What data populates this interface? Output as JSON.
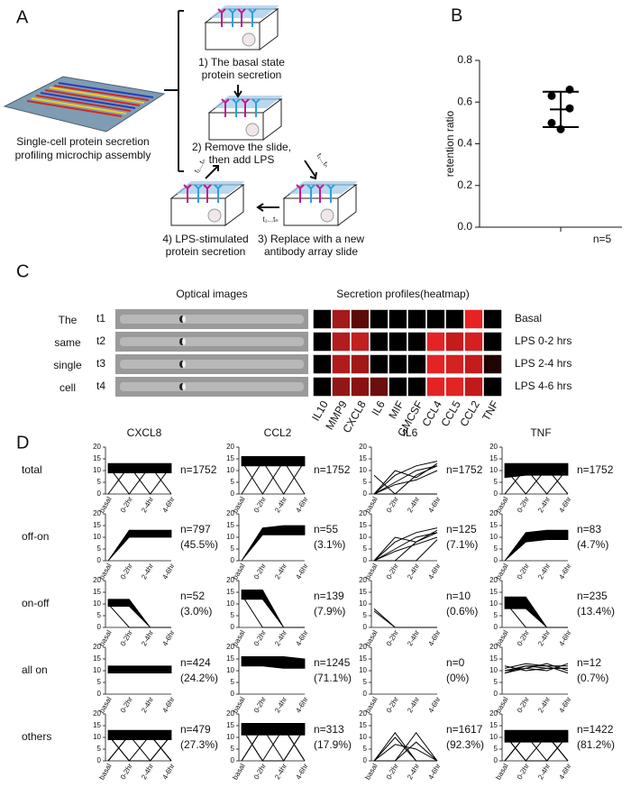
{
  "panel_a": {
    "label": "A",
    "microchip_caption": [
      "Single-cell protein secretion",
      "profiling microchip assembly"
    ],
    "steps": [
      [
        "1)  The basal state",
        "protein secretion"
      ],
      [
        "2) Remove the slide,",
        "then add LPS"
      ],
      [
        "3) Replace with a new",
        "antibody array slide"
      ],
      [
        "4) LPS-stimulated",
        "protein secretion"
      ]
    ],
    "time_labels": [
      "t₁...tₙ",
      "t₁...tₙ",
      "t₁...tₙ"
    ]
  },
  "chart_data": {
    "type": "scatter",
    "label": "B",
    "ylabel": "retention ratio",
    "ylim": [
      0,
      0.8
    ],
    "yticks": [
      {
        "value": 0,
        "label": "0.0"
      },
      0.2,
      0.4,
      0.6,
      0.8
    ],
    "values": [
      0.66,
      0.63,
      0.57,
      0.5,
      0.47
    ],
    "mean": 0.565,
    "sd": 0.085,
    "annotation": "n=5",
    "color": "#000000"
  },
  "panel_c": {
    "label": "C",
    "optical_header": "Optical images",
    "heatmap_header": "Secretion profiles(heatmap)",
    "side_label": [
      "The",
      "same",
      "single",
      "cell"
    ],
    "columns": [
      "IL10",
      "MMP9",
      "CXCL8",
      "IL6",
      "MIF",
      "GMCSF",
      "CCL4",
      "CCL5",
      "CCL2",
      "TNF"
    ],
    "rows": [
      {
        "label": "t1",
        "condition": "Basal",
        "colors": [
          "#000000",
          "#a51a1a",
          "#5c0a0a",
          "#000000",
          "#000000",
          "#000000",
          "#000000",
          "#000000",
          "#e82222",
          "#000000"
        ]
      },
      {
        "label": "t2",
        "condition": "LPS 0-2 hrs",
        "colors": [
          "#000000",
          "#b21c1c",
          "#c02020",
          "#000000",
          "#000000",
          "#000000",
          "#e42424",
          "#c41c1c",
          "#d42020",
          "#000000"
        ]
      },
      {
        "label": "t3",
        "condition": "LPS 2-4 hrs",
        "colors": [
          "#000000",
          "#b01c1c",
          "#a01818",
          "#000000",
          "#000000",
          "#000000",
          "#e42424",
          "#d42222",
          "#c21c1c",
          "#200404"
        ]
      },
      {
        "label": "t4",
        "condition": "LPS 4-6 hrs",
        "colors": [
          "#000000",
          "#921616",
          "#8a1212",
          "#6a0e0e",
          "#000000",
          "#000000",
          "#e42424",
          "#e22424",
          "#c21a1a",
          "#000000"
        ]
      }
    ]
  },
  "panel_d": {
    "type": "line",
    "label": "D",
    "ylim": [
      0,
      20
    ],
    "yticks": [
      0,
      5,
      10,
      15,
      20
    ],
    "categories": [
      "basal",
      "0-2hr",
      "2-4hr",
      "4-6hr"
    ],
    "rows": [
      "total",
      "off-on",
      "on-off",
      "all on",
      "others"
    ],
    "columns": [
      {
        "name": "CXCL8",
        "panels": [
          {
            "n": [
              "n=1752"
            ],
            "band": {
              "low": [
                9,
                9,
                9,
                9
              ],
              "high": [
                13,
                13,
                13,
                13
              ]
            },
            "traces": [
              [
                0,
                12,
                12,
                12
              ],
              [
                12,
                0,
                12,
                12
              ],
              [
                12,
                12,
                0,
                12
              ],
              [
                12,
                12,
                12,
                0
              ]
            ]
          },
          {
            "n": [
              "n=797",
              "(45.5%)"
            ],
            "band": {
              "low": [
                0,
                10,
                10,
                10
              ],
              "high": [
                0,
                13,
                13,
                13
              ]
            }
          },
          {
            "n": [
              "n=52",
              "(3.0%)"
            ],
            "band": {
              "low": [
                9,
                9,
                0,
                0
              ],
              "high": [
                12,
                12,
                0,
                0
              ]
            },
            "traces": [
              [
                10,
                0,
                0,
                0
              ]
            ]
          },
          {
            "n": [
              "n=424",
              "(24.2%)"
            ],
            "band": {
              "low": [
                9,
                9,
                9,
                9
              ],
              "high": [
                12,
                12,
                12,
                12
              ]
            }
          },
          {
            "n": [
              "n=479",
              "(27.3%)"
            ],
            "band": {
              "low": [
                9,
                9,
                9,
                9
              ],
              "high": [
                13,
                13,
                13,
                13
              ]
            },
            "traces": [
              [
                0,
                11,
                0,
                11
              ],
              [
                11,
                0,
                11,
                0
              ],
              [
                0,
                11,
                11,
                0
              ],
              [
                11,
                0,
                0,
                11
              ]
            ]
          }
        ]
      },
      {
        "name": "CCL2",
        "panels": [
          {
            "n": [
              "n=1752"
            ],
            "band": {
              "low": [
                12,
                12,
                12,
                12
              ],
              "high": [
                16,
                16,
                16,
                16
              ]
            },
            "traces": [
              [
                0,
                14,
                14,
                14
              ],
              [
                14,
                0,
                14,
                14
              ],
              [
                14,
                14,
                0,
                14
              ],
              [
                14,
                14,
                14,
                0
              ]
            ]
          },
          {
            "n": [
              "n=55",
              "(3.1%)"
            ],
            "band": {
              "low": [
                0,
                11,
                11,
                11
              ],
              "high": [
                0,
                14,
                15,
                15
              ]
            }
          },
          {
            "n": [
              "n=139",
              "(7.9%)"
            ],
            "band": {
              "low": [
                12,
                12,
                0,
                0
              ],
              "high": [
                16,
                16,
                0,
                0
              ]
            },
            "traces": [
              [
                14,
                0,
                0,
                0
              ]
            ]
          },
          {
            "n": [
              "n=1245",
              "(71.1%)"
            ],
            "band": {
              "low": [
                12,
                12,
                11,
                11
              ],
              "high": [
                16,
                16,
                16,
                15
              ]
            }
          },
          {
            "n": [
              "n=313",
              "(17.9%)"
            ],
            "band": {
              "low": [
                11,
                11,
                11,
                11
              ],
              "high": [
                16,
                16,
                16,
                16
              ]
            },
            "traces": [
              [
                0,
                14,
                0,
                14
              ],
              [
                14,
                0,
                14,
                0
              ],
              [
                14,
                0,
                0,
                14
              ],
              [
                0,
                14,
                14,
                0
              ]
            ]
          }
        ]
      },
      {
        "name": "IL6",
        "panels": [
          {
            "n": [
              "n=1752"
            ],
            "traces": [
              [
                8,
                0,
                0,
                0
              ],
              [
                0,
                5,
                10,
                12
              ],
              [
                0,
                8,
                12,
                14
              ],
              [
                0,
                0,
                8,
                12
              ],
              [
                0,
                4,
                6,
                10
              ],
              [
                0,
                10,
                7,
                13
              ]
            ]
          },
          {
            "n": [
              "n=125",
              "(7.1%)"
            ],
            "traces": [
              [
                0,
                5,
                10,
                12
              ],
              [
                0,
                8,
                12,
                14
              ],
              [
                0,
                0,
                8,
                12
              ],
              [
                0,
                4,
                7,
                10
              ],
              [
                0,
                10,
                8,
                13
              ],
              [
                0,
                0,
                0,
                9
              ]
            ]
          },
          {
            "n": [
              "n=10",
              "(0.6%)"
            ],
            "traces": [
              [
                8,
                0,
                0,
                0
              ],
              [
                7,
                0,
                0,
                0
              ]
            ]
          },
          {
            "n": [
              "n=0",
              "(0%)"
            ]
          },
          {
            "n": [
              "n=1617",
              "(92.3%)"
            ],
            "traces": [
              [
                0,
                10,
                0,
                0
              ],
              [
                0,
                0,
                12,
                0
              ],
              [
                0,
                7,
                5,
                0
              ],
              [
                0,
                0,
                8,
                0
              ],
              [
                0,
                12,
                0,
                0
              ]
            ]
          }
        ]
      },
      {
        "name": "TNF",
        "panels": [
          {
            "n": [
              "n=1752"
            ],
            "band": {
              "low": [
                7,
                8,
                8,
                8
              ],
              "high": [
                13,
                13,
                13,
                13
              ]
            },
            "traces": [
              [
                0,
                11,
                11,
                11
              ],
              [
                11,
                0,
                11,
                11
              ],
              [
                11,
                11,
                0,
                11
              ],
              [
                11,
                11,
                11,
                0
              ]
            ]
          },
          {
            "n": [
              "n=83",
              "(4.7%)"
            ],
            "band": {
              "low": [
                0,
                8,
                9,
                9
              ],
              "high": [
                0,
                12,
                13,
                13
              ]
            }
          },
          {
            "n": [
              "n=235",
              "(13.4%)"
            ],
            "band": {
              "low": [
                8,
                8,
                0,
                0
              ],
              "high": [
                13,
                13,
                0,
                0
              ]
            },
            "traces": [
              [
                11,
                0,
                0,
                0
              ]
            ]
          },
          {
            "n": [
              "n=12",
              "(0.7%)"
            ],
            "traces": [
              [
                10,
                12,
                11,
                11
              ],
              [
                9,
                11,
                13,
                10
              ],
              [
                11,
                13,
                12,
                12
              ],
              [
                12,
                10,
                11,
                11
              ],
              [
                10,
                11,
                10,
                13
              ],
              [
                9,
                12,
                12,
                9
              ]
            ]
          },
          {
            "n": [
              "n=1422",
              "(81.2%)"
            ],
            "band": {
              "low": [
                8,
                8,
                8,
                8
              ],
              "high": [
                13,
                13,
                13,
                13
              ]
            },
            "traces": [
              [
                0,
                11,
                0,
                11
              ],
              [
                11,
                0,
                11,
                0
              ],
              [
                0,
                11,
                11,
                0
              ],
              [
                11,
                0,
                0,
                11
              ]
            ]
          }
        ]
      }
    ]
  }
}
